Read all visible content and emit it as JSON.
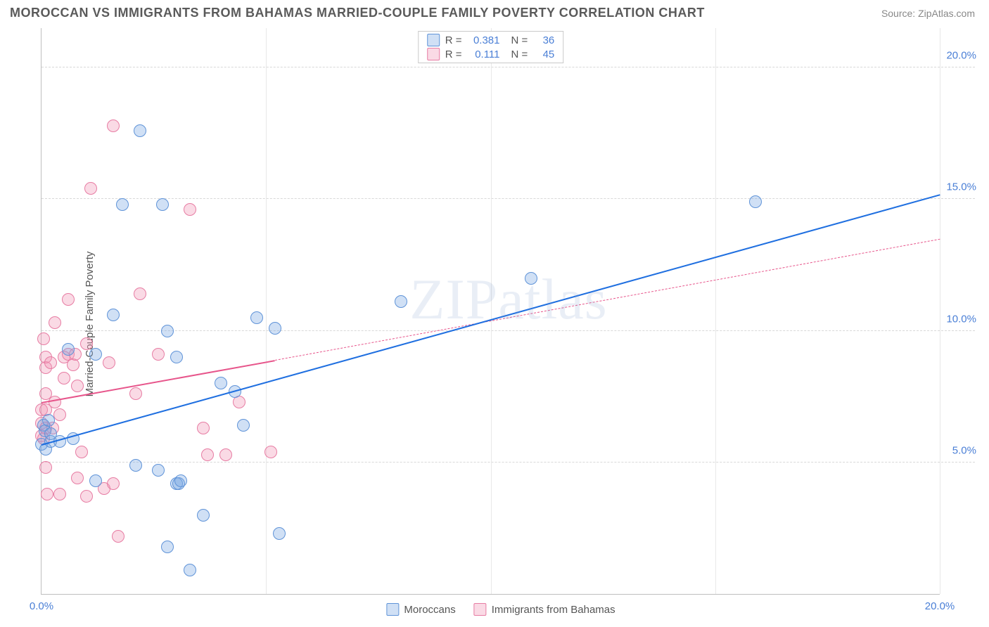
{
  "header": {
    "title": "MOROCCAN VS IMMIGRANTS FROM BAHAMAS MARRIED-COUPLE FAMILY POVERTY CORRELATION CHART",
    "source": "Source: ZipAtlas.com"
  },
  "axes": {
    "ylabel": "Married-Couple Family Poverty",
    "xlim": [
      0,
      20
    ],
    "ylim": [
      0,
      21.5
    ],
    "yticks": [
      {
        "v": 5,
        "label": "5.0%"
      },
      {
        "v": 10,
        "label": "10.0%"
      },
      {
        "v": 15,
        "label": "15.0%"
      },
      {
        "v": 20,
        "label": "20.0%"
      }
    ],
    "xticks": [
      {
        "v": 0,
        "label": "0.0%"
      },
      {
        "v": 20,
        "label": "20.0%"
      }
    ],
    "vgrid": [
      5,
      10,
      15,
      20
    ],
    "grid_color": "#d8d8d8",
    "tick_color": "#4a7fd6",
    "tick_fontsize": 15
  },
  "series": {
    "blue": {
      "name": "Moroccans",
      "fill": "rgba(120,165,225,0.35)",
      "stroke": "#5f93d8",
      "line_color": "#1f6fe0",
      "marker_r": 9,
      "R": "0.381",
      "N": "36",
      "trend_solid": {
        "x1": 0,
        "y1": 5.7,
        "x2": 20,
        "y2": 15.2
      },
      "points": [
        [
          0.0,
          5.7
        ],
        [
          0.05,
          6.4
        ],
        [
          0.08,
          6.2
        ],
        [
          0.1,
          5.5
        ],
        [
          0.15,
          6.6
        ],
        [
          0.2,
          5.8
        ],
        [
          0.2,
          6.1
        ],
        [
          0.4,
          5.8
        ],
        [
          0.6,
          9.3
        ],
        [
          0.7,
          5.9
        ],
        [
          1.2,
          4.3
        ],
        [
          1.2,
          9.1
        ],
        [
          1.6,
          10.6
        ],
        [
          1.8,
          14.8
        ],
        [
          2.1,
          4.9
        ],
        [
          2.2,
          17.6
        ],
        [
          2.6,
          4.7
        ],
        [
          2.7,
          14.8
        ],
        [
          2.8,
          1.8
        ],
        [
          2.8,
          10.0
        ],
        [
          3.0,
          9.0
        ],
        [
          3.0,
          4.2
        ],
        [
          3.05,
          4.2
        ],
        [
          3.1,
          4.3
        ],
        [
          3.3,
          0.9
        ],
        [
          3.6,
          3.0
        ],
        [
          4.0,
          8.0
        ],
        [
          4.3,
          7.7
        ],
        [
          4.5,
          6.4
        ],
        [
          4.8,
          10.5
        ],
        [
          5.2,
          10.1
        ],
        [
          5.3,
          2.3
        ],
        [
          8.0,
          11.1
        ],
        [
          10.9,
          12.0
        ],
        [
          15.9,
          14.9
        ]
      ]
    },
    "pink": {
      "name": "Immigants from Bahamas",
      "name_display": "Immigrants from Bahamas",
      "fill": "rgba(240,150,180,0.35)",
      "stroke": "#e77ca3",
      "line_color": "#e7558b",
      "marker_r": 9,
      "R": "0.111",
      "N": "45",
      "trend_solid": {
        "x1": 0,
        "y1": 7.3,
        "x2": 5.2,
        "y2": 8.9
      },
      "trend_dash": {
        "x1": 5.2,
        "y1": 8.9,
        "x2": 20,
        "y2": 13.5
      },
      "points": [
        [
          0.0,
          6.0
        ],
        [
          0.0,
          6.5
        ],
        [
          0.0,
          7.0
        ],
        [
          0.05,
          5.9
        ],
        [
          0.05,
          9.7
        ],
        [
          0.1,
          4.8
        ],
        [
          0.1,
          6.3
        ],
        [
          0.1,
          7.0
        ],
        [
          0.1,
          7.6
        ],
        [
          0.1,
          8.6
        ],
        [
          0.1,
          9.0
        ],
        [
          0.12,
          3.8
        ],
        [
          0.2,
          8.8
        ],
        [
          0.25,
          6.3
        ],
        [
          0.3,
          7.3
        ],
        [
          0.3,
          10.3
        ],
        [
          0.4,
          3.8
        ],
        [
          0.4,
          6.8
        ],
        [
          0.5,
          8.2
        ],
        [
          0.5,
          9.0
        ],
        [
          0.6,
          9.1
        ],
        [
          0.6,
          11.2
        ],
        [
          0.7,
          8.7
        ],
        [
          0.75,
          9.1
        ],
        [
          0.8,
          4.4
        ],
        [
          0.8,
          7.9
        ],
        [
          0.9,
          5.4
        ],
        [
          1.0,
          3.7
        ],
        [
          1.0,
          9.5
        ],
        [
          1.1,
          15.4
        ],
        [
          1.4,
          4.0
        ],
        [
          1.5,
          8.8
        ],
        [
          1.6,
          4.2
        ],
        [
          1.6,
          17.8
        ],
        [
          1.7,
          2.2
        ],
        [
          2.1,
          7.6
        ],
        [
          2.2,
          11.4
        ],
        [
          2.6,
          9.1
        ],
        [
          3.3,
          14.6
        ],
        [
          3.6,
          6.3
        ],
        [
          3.7,
          5.3
        ],
        [
          4.1,
          5.3
        ],
        [
          4.4,
          7.3
        ],
        [
          5.1,
          5.4
        ]
      ]
    }
  },
  "legend_top": {
    "rows": [
      {
        "series": "blue",
        "Rlabel": "R =",
        "Nlabel": "N ="
      },
      {
        "series": "pink",
        "Rlabel": "R =",
        "Nlabel": "N ="
      }
    ]
  },
  "watermark": "ZIPatlas",
  "colors": {
    "bg": "#ffffff",
    "title": "#5a5a5a",
    "source": "#888888",
    "axis": "#bfbfbf"
  }
}
